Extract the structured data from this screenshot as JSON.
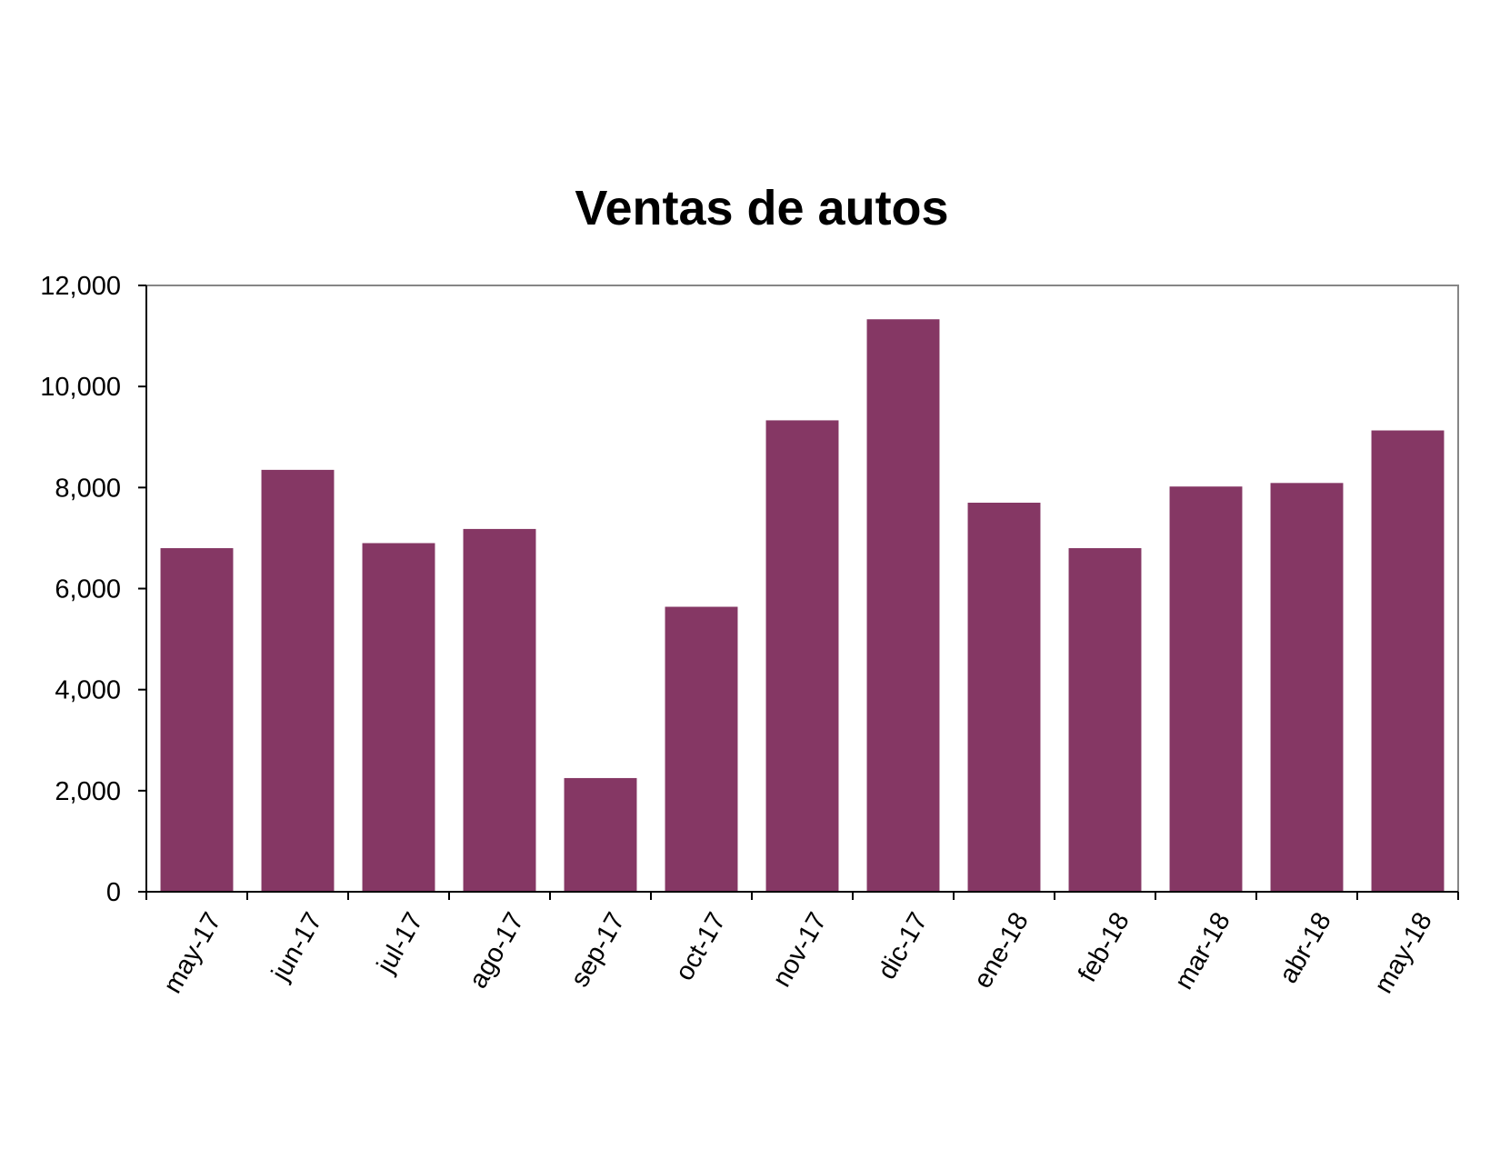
{
  "chart_data": {
    "type": "bar",
    "title": "Ventas de autos",
    "xlabel": "",
    "ylabel": "",
    "categories": [
      "may-17",
      "jun-17",
      "jul-17",
      "ago-17",
      "sep-17",
      "oct-17",
      "nov-17",
      "dic-17",
      "ene-18",
      "feb-18",
      "mar-18",
      "abr-18",
      "may-18"
    ],
    "values": [
      6800,
      8350,
      6900,
      7180,
      2250,
      5640,
      9330,
      11330,
      7700,
      6800,
      8020,
      8090,
      9130
    ],
    "ylim": [
      0,
      12000
    ],
    "yticks": [
      0,
      2000,
      4000,
      6000,
      8000,
      10000,
      12000
    ],
    "ytick_labels": [
      "0",
      "2,000",
      "4,000",
      "6,000",
      "8,000",
      "10,000",
      "12,000"
    ],
    "grid": false,
    "legend": "none",
    "bar_color": "#853764",
    "axis_color": "#000000",
    "frame_color": "#868686"
  }
}
